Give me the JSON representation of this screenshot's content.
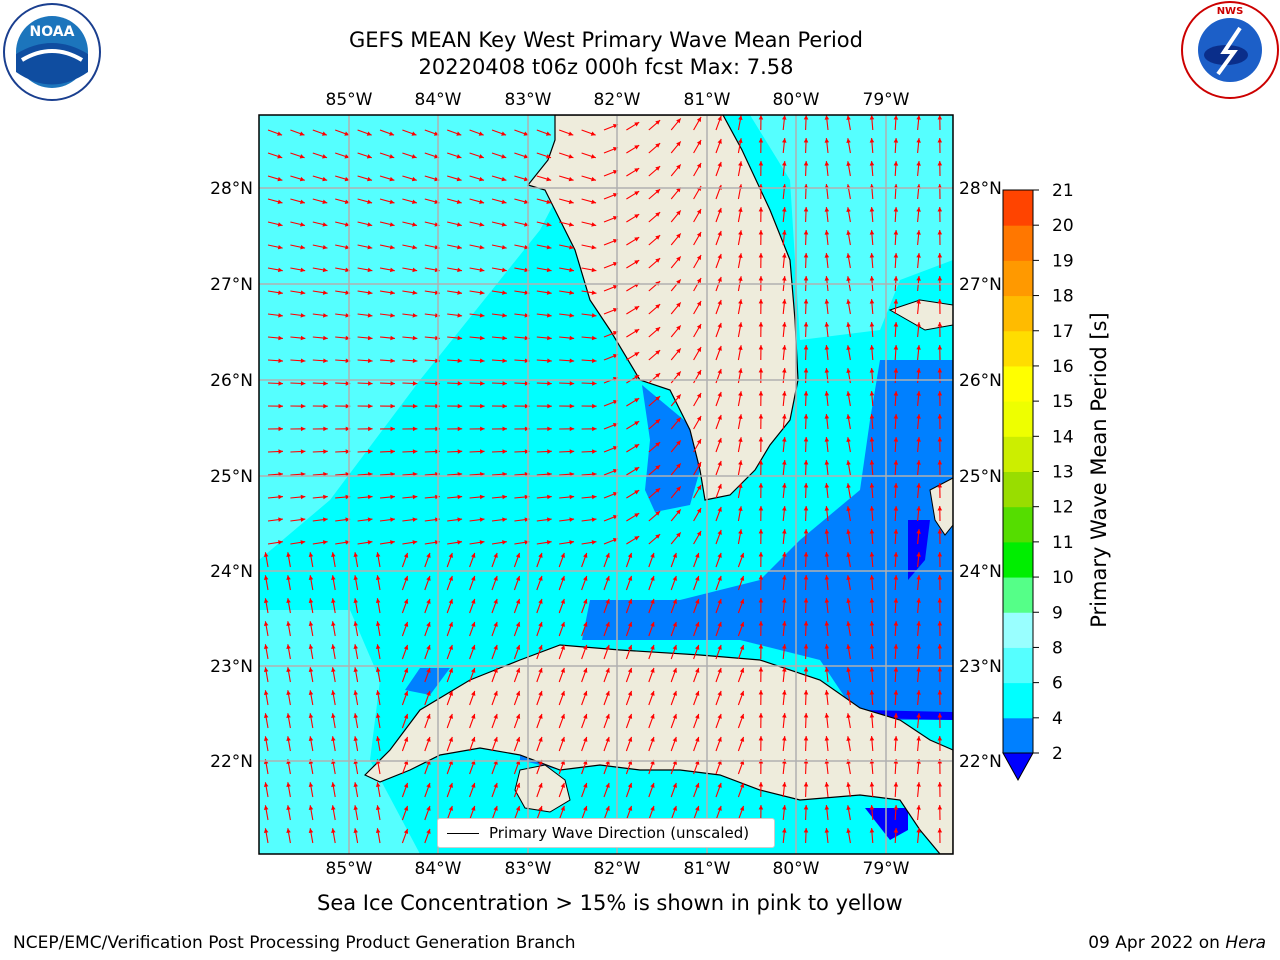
{
  "title": {
    "line1": "GEFS MEAN Key West Primary Wave Mean Period",
    "line2": "20220408 t06z 000h fcst   Max: 7.58"
  },
  "map": {
    "lon_labels": [
      "85°W",
      "84°W",
      "83°W",
      "82°W",
      "81°W",
      "80°W",
      "79°W"
    ],
    "lat_labels": [
      "28°N",
      "27°N",
      "26°N",
      "25°N",
      "24°N",
      "23°N",
      "22°N"
    ],
    "colors": {
      "ocean_low": "#00ffff",
      "ocean_mid": "#55ffff",
      "ocean_blue": "#0080ff",
      "ocean_dark": "#0000ff",
      "land": "#eeecdc",
      "arrow": "#ff0000",
      "grid": "#b0b0b0"
    }
  },
  "legend": {
    "label": "Primary Wave Direction (unscaled)"
  },
  "colorbar": {
    "label": "Primary Wave Mean Period [s]",
    "ticks": [
      "2",
      "4",
      "6",
      "8",
      "9",
      "10",
      "11",
      "12",
      "13",
      "14",
      "15",
      "16",
      "17",
      "18",
      "19",
      "20",
      "21"
    ],
    "colors": [
      "#0080ff",
      "#00ffff",
      "#55ffff",
      "#99ffff",
      "#55ff88",
      "#00ee00",
      "#55dd00",
      "#99dd00",
      "#ccee00",
      "#eeff00",
      "#ffff00",
      "#ffdd00",
      "#ffbb00",
      "#ff9900",
      "#ff7700",
      "#ff4400",
      "#ff0000"
    ]
  },
  "note": "Sea Ice Concentration > 15% is shown in pink to yellow",
  "footer": {
    "left": "NCEP/EMC/Verification Post Processing Product Generation Branch",
    "right_date": "09 Apr 2022 on ",
    "right_host": "Hera"
  },
  "logos": {
    "left_text": "NOAA",
    "right_text": "NATIONAL WEATHER SERVICE"
  }
}
